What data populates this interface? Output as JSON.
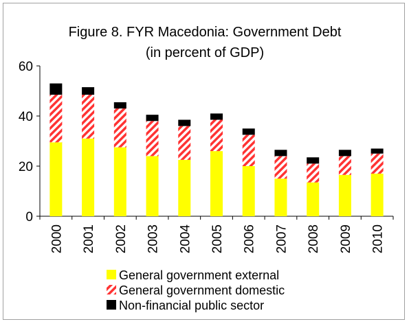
{
  "chart_data": {
    "type": "bar",
    "stacked": true,
    "title": "Figure 8. FYR Macedonia: Government Debt",
    "subtitle": "(in percent of GDP)",
    "xlabel": "",
    "ylabel": "",
    "categories": [
      "2000",
      "2001",
      "2002",
      "2003",
      "2004",
      "2005",
      "2006",
      "2007",
      "2008",
      "2009",
      "2010"
    ],
    "ylim": [
      0,
      60
    ],
    "yticks": [
      0,
      20,
      40,
      60
    ],
    "grid": false,
    "legend_position": "bottom",
    "series": [
      {
        "name": "General government external",
        "color": "#ffff00",
        "pattern": "solid",
        "values": [
          29.5,
          31,
          27.5,
          24,
          22.5,
          26,
          20,
          15,
          13.5,
          16.5,
          17
        ]
      },
      {
        "name": "General government domestic",
        "color": "#ff3333",
        "pattern": "diagonal-hatch",
        "values": [
          19,
          17.5,
          15.5,
          14,
          13.5,
          12.5,
          12.5,
          9,
          7.5,
          7.5,
          8
        ]
      },
      {
        "name": "Non-financial public sector",
        "color": "#000000",
        "pattern": "solid",
        "values": [
          4.5,
          3,
          2.5,
          2.5,
          2.5,
          2.5,
          2.5,
          2.5,
          2.5,
          2.5,
          2
        ]
      }
    ]
  }
}
